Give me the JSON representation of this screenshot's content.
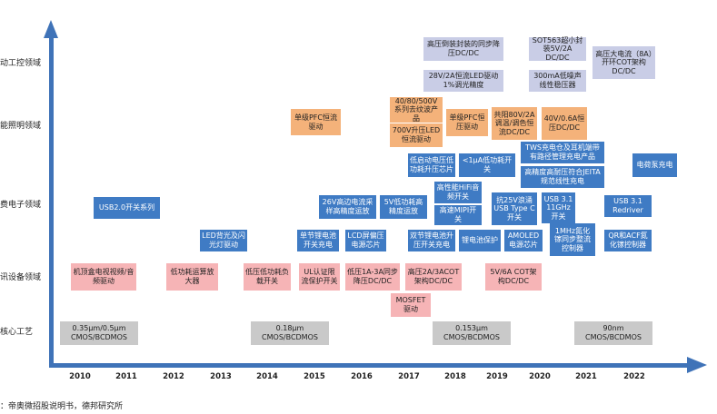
{
  "y_categories": [
    {
      "id": "industrial",
      "label": "动工控领域"
    },
    {
      "id": "lighting",
      "label": "能照明领域"
    },
    {
      "id": "consumer",
      "label": "费电子领域"
    },
    {
      "id": "comm",
      "label": "讯设备领域"
    },
    {
      "id": "process",
      "label": "核心工艺"
    }
  ],
  "years": [
    "2010",
    "2011",
    "2012",
    "2013",
    "2014",
    "2015",
    "2016",
    "2017",
    "2018",
    "2019",
    "2020",
    "2021",
    "2022"
  ],
  "boxes": {
    "b1": "高压倒装封装的同步降压DC/DC",
    "b2": "28V/2A恒流LED驱动1%调光精度",
    "b3": "SOT563超小封装5V/2A DC/DC",
    "b4": "300mA低噪声线性稳压器",
    "b5": "高压大电流（8A）开环COT架构DC/DC",
    "b6": "单级PFC恒流驱动",
    "b7": "40/80/500V系列去纹波产品",
    "b8": "700V升压LED恒流驱动",
    "b9": "单级PFC恒压驱动",
    "b10": "共阳80V/2A调温/调色恒流DC/DC",
    "b11": "40V/0.6A恒压DC/DC",
    "b12": "TWS充电仓及耳机端带有路径管理充电产品",
    "b13": "低启动电压低功耗升压芯片",
    "b14": "<1μA低功耗开关",
    "b15": "高精度高耐压符合JEITA规范线性充电",
    "b16": "电荷泵充电",
    "b17": "USB2.0开关系列",
    "b18": "26V高边电流采样高精度运放",
    "b19": "5V低功耗高精度运放",
    "b20": "高性能HiFi音频开关",
    "b21": "高速MIPI开关",
    "b22": "抗25V浪涌USB Type C开关",
    "b23": "USB 3.1 11GHz开关",
    "b24": "USB 3.1 Redriver",
    "b25": "LED背光及闪光灯驱动",
    "b26": "单节锂电池开关充电",
    "b27": "LCD屏偏压电源芯片",
    "b28": "双节锂电池升压开关充电",
    "b29": "锂电池保护",
    "b30": "AMOLED电源芯片",
    "b31": "1MHz氮化镓同步整流控制器",
    "b32": "QR和ACF氮化镓控制器",
    "b33": "机顶盒电视视频/音频驱动",
    "b34": "低功耗运算放大器",
    "b35": "低压低功耗负载开关",
    "b36": "UL认证限流保护开关",
    "b37": "低压1A-3A同步降压DC/DC",
    "b38": "高压2A/3ACOT架构DC/DC",
    "b39": "5V/6A COT架构DC/DC",
    "b40": "MOSFET驱动",
    "p1": "0.35μm/0.5μm CMOS/BCDMOS",
    "p2": "0.18μm CMOS/BCDMOS",
    "p3": "0.153μm CMOS/BCDMOS",
    "p4": "90nm CMOS/BCDMOS"
  },
  "footnote": "：帝奥微招股说明书，德邦研究所",
  "colors": {
    "axis": "#3f73b8",
    "blue_box": "#3f7bc4",
    "pink_box": "#f6b4b6",
    "orange_box": "#f4b27a",
    "gray_box": "#c9c9c9",
    "lavender_box": "#c9cde6"
  }
}
